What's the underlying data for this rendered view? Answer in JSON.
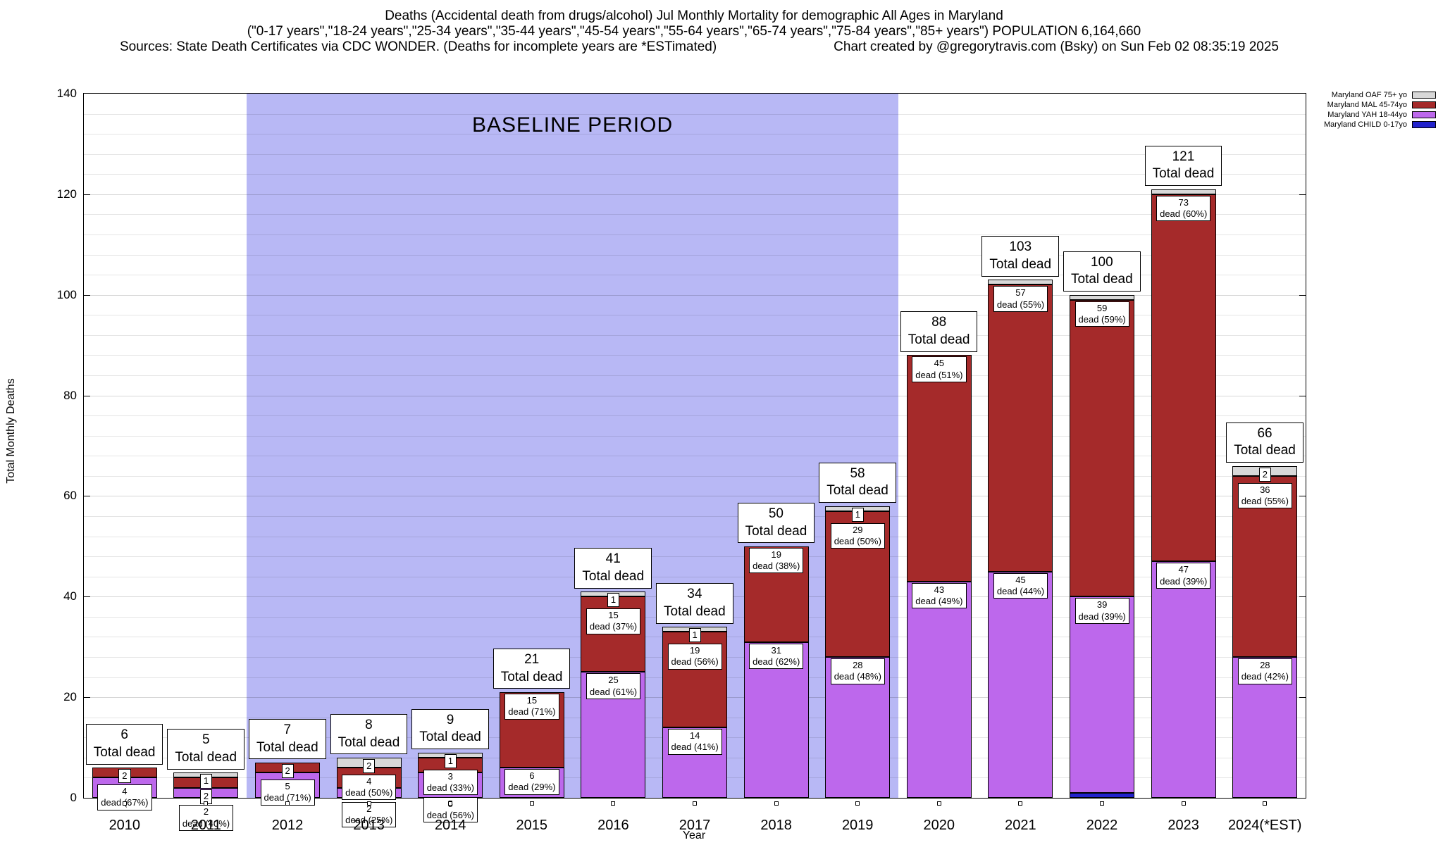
{
  "chart_data": {
    "type": "bar",
    "stacked": true,
    "title": "Deaths (Accidental death from drugs/alcohol) Jul Monthly Mortality for demographic All Ages in Maryland",
    "subtitle": "(\"0-17 years\",\"18-24 years\",\"25-34 years\",\"35-44 years\",\"45-54 years\",\"55-64 years\",\"65-74 years\",\"75-84 years\",\"85+ years\") POPULATION 6,164,660",
    "sources_note": "Sources: State Death Certificates via CDC WONDER. (Deaths for incomplete years are *ESTimated)",
    "credit_note": "Chart created by @gregorytravis.com (Bsky) on Sun Feb 02 08:35:19 2025",
    "xlabel": "Year",
    "ylabel": "Total Monthly Deaths",
    "ylim": [
      0,
      140
    ],
    "ytick_interval": 20,
    "grid_interval": 4,
    "grid": true,
    "legend_position": "top-right",
    "baseline_band": {
      "label": "BASELINE PERIOD",
      "from_category": "2012",
      "to_category": "2019",
      "color": "#b8b8f5"
    },
    "categories": [
      "2010",
      "2011",
      "2012",
      "2013",
      "2014",
      "2015",
      "2016",
      "2017",
      "2018",
      "2019",
      "2020",
      "2021",
      "2022",
      "2023",
      "2024(*EST)"
    ],
    "totals": [
      6,
      5,
      7,
      8,
      9,
      21,
      41,
      34,
      50,
      58,
      88,
      103,
      100,
      121,
      66
    ],
    "total_label_suffix": "Total dead",
    "series": [
      {
        "name": "Maryland CHILD 0-17yo",
        "key": "child",
        "color": "#2222cc",
        "values": [
          0,
          0,
          0,
          0,
          0,
          0,
          0,
          0,
          0,
          0,
          0,
          0,
          1,
          0,
          0
        ],
        "labels": null
      },
      {
        "name": "Maryland YAH 18-44yo",
        "key": "yah",
        "color": "#bd68ec",
        "values": [
          4,
          2,
          5,
          2,
          5,
          6,
          25,
          14,
          31,
          28,
          43,
          45,
          39,
          47,
          28
        ],
        "labels": [
          [
            "4",
            "dead (67%)"
          ],
          [
            "2",
            "dead (40%)"
          ],
          [
            "5",
            "dead (71%)"
          ],
          [
            "2",
            "dead (25%)"
          ],
          [
            "5",
            "dead (56%)"
          ],
          [
            "6",
            "dead (29%)"
          ],
          [
            "25",
            "dead (61%)"
          ],
          [
            "14",
            "dead (41%)"
          ],
          [
            "31",
            "dead (62%)"
          ],
          [
            "28",
            "dead (48%)"
          ],
          [
            "43",
            "dead (49%)"
          ],
          [
            "45",
            "dead (44%)"
          ],
          [
            "39",
            "dead (39%)"
          ],
          [
            "47",
            "dead (39%)"
          ],
          [
            "28",
            "dead (42%)"
          ]
        ]
      },
      {
        "name": "Maryland MAL 45-74yo",
        "key": "mal",
        "color": "#a52a2a",
        "values": [
          2,
          2,
          2,
          4,
          3,
          15,
          15,
          19,
          19,
          29,
          45,
          57,
          59,
          73,
          36
        ],
        "labels": [
          [
            "2"
          ],
          [
            "2"
          ],
          [
            "2"
          ],
          [
            "4",
            "dead (50%)"
          ],
          [
            "3",
            "dead (33%)"
          ],
          [
            "15",
            "dead (71%)"
          ],
          [
            "15",
            "dead (37%)"
          ],
          [
            "19",
            "dead (56%)"
          ],
          [
            "19",
            "dead (38%)"
          ],
          [
            "29",
            "dead (50%)"
          ],
          [
            "45",
            "dead (51%)"
          ],
          [
            "57",
            "dead (55%)"
          ],
          [
            "59",
            "dead (59%)"
          ],
          [
            "73",
            "dead (60%)"
          ],
          [
            "36",
            "dead (55%)"
          ]
        ]
      },
      {
        "name": "Maryland OAF 75+ yo",
        "key": "oaf",
        "color": "#d8d8d8",
        "values": [
          0,
          1,
          0,
          2,
          1,
          0,
          1,
          1,
          0,
          1,
          0,
          1,
          1,
          1,
          2
        ],
        "labels": [
          null,
          [
            "1"
          ],
          null,
          [
            "2"
          ],
          [
            "1"
          ],
          null,
          [
            "1"
          ],
          [
            "1"
          ],
          null,
          [
            "1"
          ],
          null,
          null,
          null,
          null,
          [
            "2"
          ]
        ]
      }
    ],
    "legend": [
      "Maryland OAF 75+ yo",
      "Maryland MAL 45-74yo",
      "Maryland YAH 18-44yo",
      "Maryland CHILD 0-17yo"
    ]
  }
}
